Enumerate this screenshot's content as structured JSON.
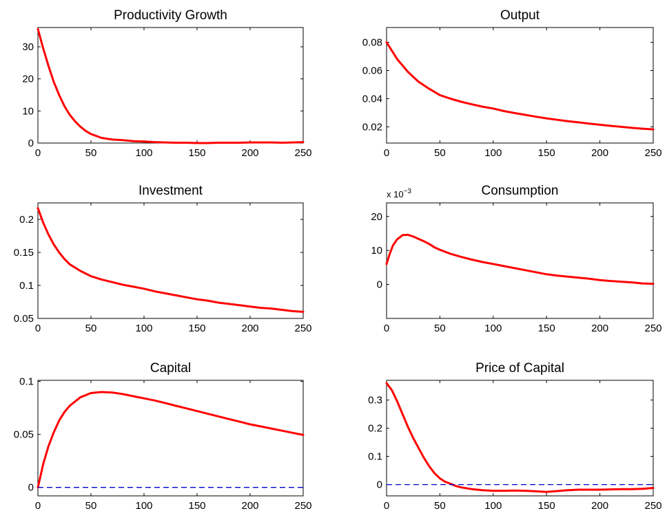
{
  "chart_data": [
    {
      "type": "line",
      "title": "Productivity Growth",
      "xlim": [
        0,
        250
      ],
      "ylim": [
        0,
        36
      ],
      "xticks": [
        0,
        50,
        100,
        150,
        200,
        250
      ],
      "yticks": [
        0,
        10,
        20,
        30
      ],
      "ytick_labels": [
        "0",
        "10",
        "20",
        "30"
      ],
      "series": [
        {
          "color": "#ff0000",
          "style": "solid",
          "x": [
            0,
            5,
            10,
            15,
            20,
            25,
            30,
            35,
            40,
            45,
            50,
            60,
            70,
            80,
            90,
            100,
            110,
            120,
            130,
            140,
            150,
            160,
            170,
            180,
            190,
            200,
            210,
            220,
            230,
            240,
            250
          ],
          "y": [
            35.5,
            29.5,
            24,
            19,
            15,
            11.5,
            8.8,
            6.8,
            5.1,
            3.8,
            2.8,
            1.6,
            1.1,
            0.9,
            0.6,
            0.5,
            0.3,
            0.2,
            0.1,
            0.1,
            0,
            0,
            0.1,
            0.1,
            0.1,
            0.2,
            0.2,
            0.2,
            0.1,
            0.2,
            0.3
          ]
        }
      ]
    },
    {
      "type": "line",
      "title": "Output",
      "xlim": [
        0,
        250
      ],
      "ylim": [
        0.0085,
        0.0905
      ],
      "xticks": [
        0,
        50,
        100,
        150,
        200,
        250
      ],
      "yticks": [
        0.02,
        0.04,
        0.06,
        0.08
      ],
      "ytick_labels": [
        "0.02",
        "0.04",
        "0.06",
        "0.08"
      ],
      "series": [
        {
          "color": "#ff0000",
          "style": "solid",
          "x": [
            0,
            10,
            20,
            30,
            40,
            50,
            60,
            70,
            80,
            90,
            100,
            110,
            120,
            130,
            140,
            150,
            160,
            170,
            180,
            190,
            200,
            210,
            220,
            230,
            240,
            250
          ],
          "y": [
            0.08,
            0.068,
            0.059,
            0.052,
            0.047,
            0.0425,
            0.04,
            0.0378,
            0.036,
            0.0343,
            0.033,
            0.0312,
            0.0298,
            0.0285,
            0.0272,
            0.026,
            0.025,
            0.024,
            0.0232,
            0.0223,
            0.0215,
            0.0207,
            0.02,
            0.0193,
            0.0187,
            0.0182
          ]
        }
      ]
    },
    {
      "type": "line",
      "title": "Investment",
      "xlim": [
        0,
        250
      ],
      "ylim": [
        0.05,
        0.225
      ],
      "xticks": [
        0,
        50,
        100,
        150,
        200,
        250
      ],
      "yticks": [
        0.05,
        0.1,
        0.15,
        0.2
      ],
      "ytick_labels": [
        "0.05",
        "0.1",
        "0.15",
        "0.2"
      ],
      "series": [
        {
          "color": "#ff0000",
          "style": "solid",
          "x": [
            0,
            5,
            10,
            15,
            20,
            25,
            30,
            40,
            50,
            60,
            70,
            80,
            90,
            100,
            110,
            120,
            130,
            140,
            150,
            160,
            170,
            180,
            190,
            200,
            210,
            220,
            230,
            240,
            250
          ],
          "y": [
            0.217,
            0.195,
            0.177,
            0.162,
            0.15,
            0.14,
            0.132,
            0.122,
            0.114,
            0.109,
            0.105,
            0.101,
            0.098,
            0.095,
            0.091,
            0.088,
            0.085,
            0.082,
            0.079,
            0.077,
            0.074,
            0.072,
            0.07,
            0.068,
            0.066,
            0.065,
            0.063,
            0.061,
            0.06
          ]
        }
      ]
    },
    {
      "type": "line",
      "title": "Consumption",
      "exponent_label": {
        "base": "x 10",
        "power": "−3"
      },
      "xlim": [
        0,
        250
      ],
      "ylim": [
        -10,
        24
      ],
      "xticks": [
        0,
        50,
        100,
        150,
        200,
        250
      ],
      "yticks": [
        0,
        10,
        20
      ],
      "ytick_labels": [
        "0",
        "10",
        "20"
      ],
      "series": [
        {
          "color": "#ff0000",
          "style": "solid",
          "x": [
            0,
            3,
            6,
            10,
            15,
            20,
            25,
            30,
            35,
            40,
            45,
            50,
            60,
            70,
            80,
            90,
            100,
            110,
            120,
            130,
            140,
            150,
            160,
            170,
            180,
            190,
            200,
            210,
            220,
            230,
            240,
            250
          ],
          "y": [
            6,
            9,
            11.5,
            13.3,
            14.5,
            14.6,
            14.1,
            13.4,
            12.7,
            11.9,
            10.9,
            10.2,
            9,
            8.1,
            7.3,
            6.6,
            6,
            5.4,
            4.8,
            4.2,
            3.6,
            3,
            2.6,
            2.3,
            2,
            1.7,
            1.3,
            1,
            0.8,
            0.6,
            0.3,
            0.2
          ]
        }
      ]
    },
    {
      "type": "line",
      "title": "Capital",
      "xlim": [
        0,
        250
      ],
      "ylim": [
        -0.008,
        0.101
      ],
      "xticks": [
        0,
        50,
        100,
        150,
        200,
        250
      ],
      "yticks": [
        0,
        0.05,
        0.1
      ],
      "ytick_labels": [
        "0",
        "0.05",
        "0.1"
      ],
      "series": [
        {
          "color": "#ff0000",
          "style": "solid",
          "x": [
            0,
            5,
            10,
            15,
            20,
            25,
            30,
            40,
            50,
            60,
            70,
            80,
            90,
            100,
            110,
            120,
            130,
            140,
            150,
            160,
            170,
            180,
            190,
            200,
            210,
            220,
            230,
            240,
            250
          ],
          "y": [
            0,
            0.022,
            0.039,
            0.052,
            0.063,
            0.071,
            0.077,
            0.085,
            0.089,
            0.09,
            0.0895,
            0.088,
            0.086,
            0.084,
            0.082,
            0.0795,
            0.077,
            0.0745,
            0.072,
            0.0695,
            0.067,
            0.0645,
            0.062,
            0.0595,
            0.0575,
            0.0555,
            0.0535,
            0.0515,
            0.0495
          ]
        },
        {
          "color": "#0000cc",
          "style": "dashed",
          "x": [
            0,
            250
          ],
          "y": [
            0,
            0
          ]
        }
      ]
    },
    {
      "type": "line",
      "title": "Price of Capital",
      "xlim": [
        0,
        250
      ],
      "ylim": [
        -0.04,
        0.37
      ],
      "xticks": [
        0,
        50,
        100,
        150,
        200,
        250
      ],
      "yticks": [
        0,
        0.1,
        0.2,
        0.3
      ],
      "ytick_labels": [
        "0",
        "0.1",
        "0.2",
        "0.3"
      ],
      "series": [
        {
          "color": "#ff0000",
          "style": "solid",
          "x": [
            0,
            5,
            10,
            15,
            20,
            25,
            30,
            35,
            40,
            45,
            50,
            55,
            60,
            65,
            70,
            80,
            90,
            100,
            110,
            120,
            130,
            140,
            150,
            160,
            170,
            180,
            190,
            200,
            210,
            220,
            230,
            240,
            250
          ],
          "y": [
            0.36,
            0.335,
            0.295,
            0.25,
            0.205,
            0.165,
            0.13,
            0.095,
            0.065,
            0.04,
            0.022,
            0.01,
            0.003,
            -0.005,
            -0.01,
            -0.016,
            -0.02,
            -0.022,
            -0.022,
            -0.021,
            -0.022,
            -0.024,
            -0.026,
            -0.023,
            -0.02,
            -0.018,
            -0.018,
            -0.018,
            -0.017,
            -0.016,
            -0.016,
            -0.015,
            -0.012
          ]
        },
        {
          "color": "#0000cc",
          "style": "dashed",
          "x": [
            0,
            250
          ],
          "y": [
            0,
            0
          ]
        }
      ]
    }
  ]
}
